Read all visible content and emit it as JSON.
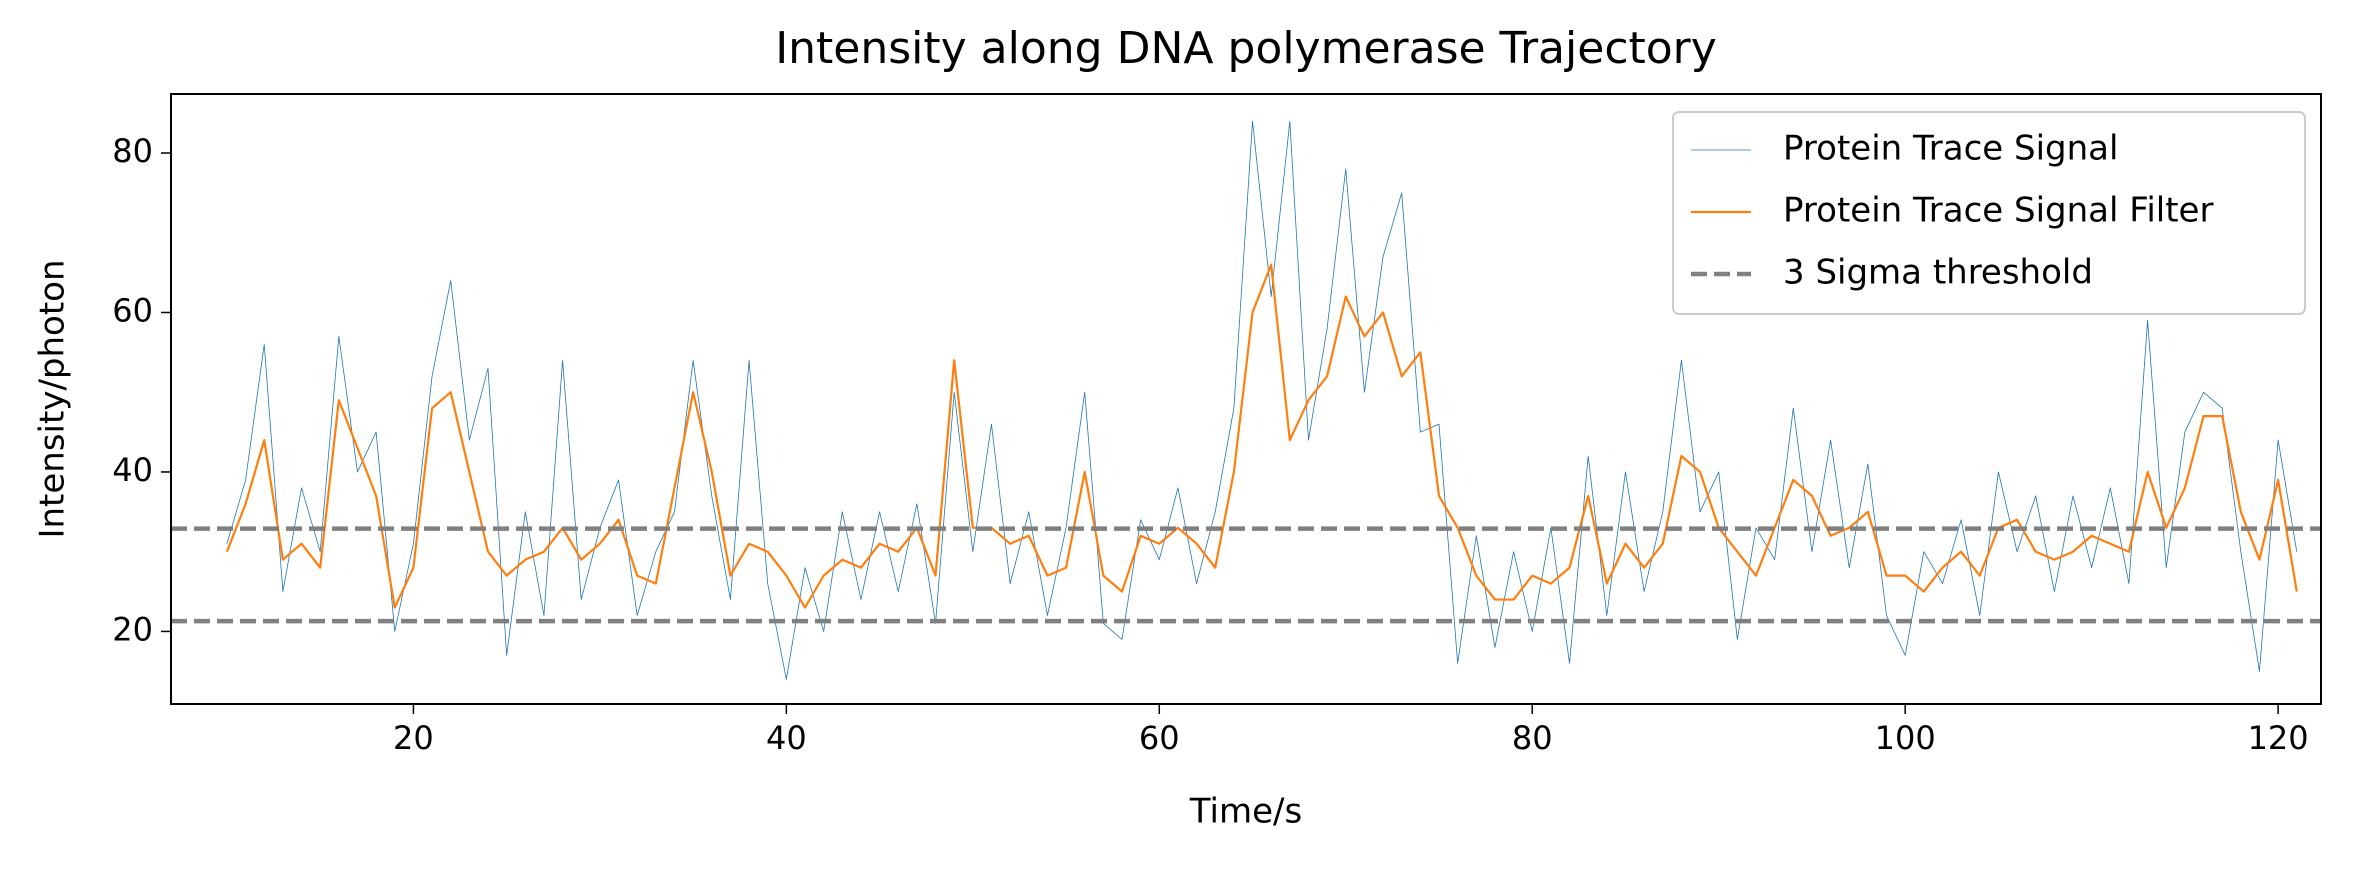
{
  "chart_data": {
    "type": "line",
    "title": "Intensity along DNA polymerase Trajectory",
    "xlabel": "Time/s",
    "ylabel": "Intensity/photon",
    "x": [
      10,
      11,
      12,
      13,
      14,
      15,
      16,
      17,
      18,
      19,
      20,
      21,
      22,
      23,
      24,
      25,
      26,
      27,
      28,
      29,
      30,
      31,
      32,
      33,
      34,
      35,
      36,
      37,
      38,
      39,
      40,
      41,
      42,
      43,
      44,
      45,
      46,
      47,
      48,
      49,
      50,
      51,
      52,
      53,
      54,
      55,
      56,
      57,
      58,
      59,
      60,
      61,
      62,
      63,
      64,
      65,
      66,
      67,
      68,
      69,
      70,
      71,
      72,
      73,
      74,
      75,
      76,
      77,
      78,
      79,
      80,
      81,
      82,
      83,
      84,
      85,
      86,
      87,
      88,
      89,
      90,
      91,
      92,
      93,
      94,
      95,
      96,
      97,
      98,
      99,
      100,
      101,
      102,
      103,
      104,
      105,
      106,
      107,
      108,
      109,
      110,
      111,
      112,
      113,
      114,
      115,
      116,
      117,
      118,
      119,
      120,
      121
    ],
    "series": [
      {
        "name": "Protein Trace Signal",
        "color": "#1f77b4",
        "width": 0.8,
        "values": [
          31,
          39,
          56,
          25,
          38,
          30,
          57,
          40,
          45,
          20,
          31,
          52,
          64,
          44,
          53,
          17,
          35,
          22,
          54,
          24,
          33,
          39,
          22,
          30,
          35,
          54,
          37,
          24,
          54,
          26,
          14,
          28,
          20,
          35,
          24,
          35,
          25,
          36,
          21,
          50,
          30,
          46,
          26,
          35,
          22,
          33,
          50,
          21,
          19,
          34,
          29,
          38,
          26,
          35,
          48,
          84,
          62,
          84,
          44,
          58,
          78,
          50,
          67,
          75,
          45,
          46,
          16,
          32,
          18,
          30,
          20,
          33,
          16,
          42,
          22,
          40,
          25,
          35,
          54,
          35,
          40,
          19,
          33,
          29,
          48,
          30,
          44,
          28,
          41,
          22,
          17,
          30,
          26,
          34,
          22,
          40,
          30,
          37,
          25,
          37,
          28,
          38,
          26,
          59,
          28,
          45,
          50,
          48,
          30,
          15,
          44,
          30
        ]
      },
      {
        "name": "Protein Trace Signal Filter",
        "color": "#ff7f0e",
        "width": 2.2,
        "values": [
          30,
          36,
          44,
          29,
          31,
          28,
          49,
          43,
          37,
          23,
          28,
          48,
          50,
          40,
          30,
          27,
          29,
          30,
          33,
          29,
          31,
          34,
          27,
          26,
          38,
          50,
          40,
          27,
          31,
          30,
          27,
          23,
          27,
          29,
          28,
          31,
          30,
          33,
          27,
          54,
          33,
          33,
          31,
          32,
          27,
          28,
          40,
          27,
          25,
          32,
          31,
          33,
          31,
          28,
          40,
          60,
          66,
          44,
          49,
          52,
          62,
          57,
          60,
          52,
          55,
          37,
          33,
          27,
          24,
          24,
          27,
          26,
          28,
          37,
          26,
          31,
          28,
          31,
          42,
          40,
          33,
          30,
          27,
          33,
          39,
          37,
          32,
          33,
          35,
          27,
          27,
          25,
          28,
          30,
          27,
          33,
          34,
          30,
          29,
          30,
          32,
          31,
          30,
          40,
          33,
          38,
          47,
          47,
          35,
          29,
          39,
          25
        ]
      }
    ],
    "hlines": {
      "name": "3 Sigma threshold",
      "color": "#808080",
      "values": [
        32.9,
        21.3
      ]
    },
    "xlim": [
      7.0,
      122.3
    ],
    "ylim": [
      10.9,
      87.4
    ],
    "xticks": [
      20,
      40,
      60,
      80,
      100,
      120
    ],
    "yticks": [
      20,
      40,
      60,
      80
    ],
    "legend": "upper right"
  }
}
